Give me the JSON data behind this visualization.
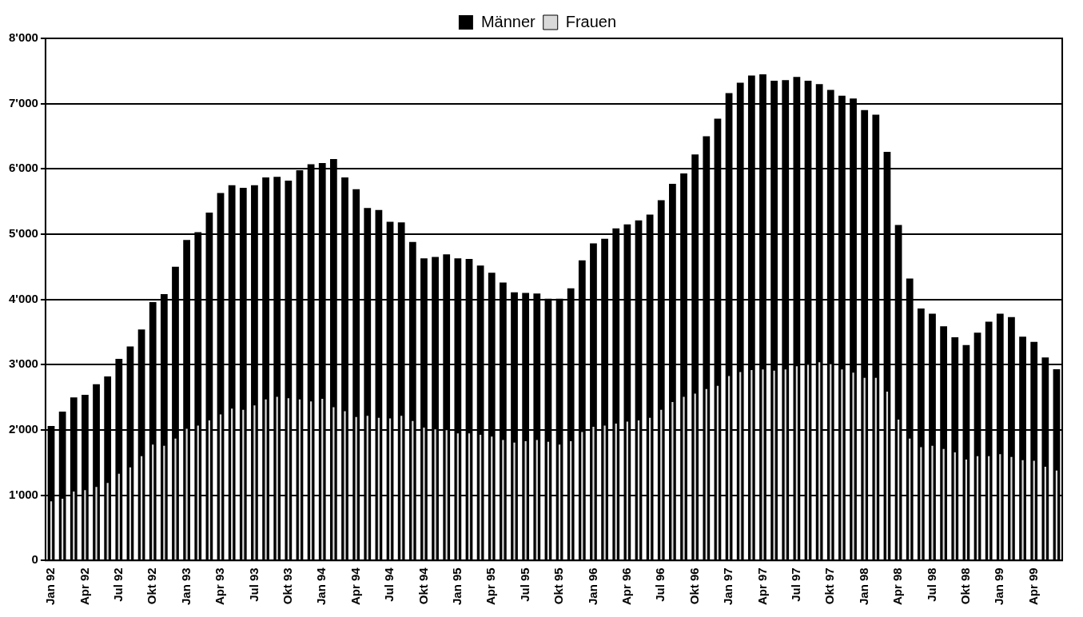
{
  "chart_data": {
    "type": "bar",
    "categories": [
      "Jan 92",
      null,
      null,
      "Apr 92",
      null,
      null,
      "Jul 92",
      null,
      null,
      "Okt 92",
      null,
      null,
      "Jan 93",
      null,
      null,
      "Apr 93",
      null,
      null,
      "Jul 93",
      null,
      null,
      "Okt 93",
      null,
      null,
      "Jan 94",
      null,
      null,
      "Apr 94",
      null,
      null,
      "Jul 94",
      null,
      null,
      "Okt 94",
      null,
      null,
      "Jan 95",
      null,
      null,
      "Apr 95",
      null,
      null,
      "Jul 95",
      null,
      null,
      "Okt 95",
      null,
      null,
      "Jan 96",
      null,
      null,
      "Apr 96",
      null,
      null,
      "Jul 96",
      null,
      null,
      "Okt 96",
      null,
      null,
      "Jan 97",
      null,
      null,
      "Apr 97",
      null,
      null,
      "Jul 97",
      null,
      null,
      "Okt 97",
      null,
      null,
      "Jan 98",
      null,
      null,
      "Apr 98",
      null,
      null,
      "Jul 98",
      null,
      null,
      "Okt 98",
      null,
      null,
      "Jan 99",
      null,
      null,
      "Apr 99",
      null,
      null
    ],
    "series": [
      {
        "name": "Männer",
        "color": "#000000",
        "values": [
          2060,
          2280,
          2500,
          2540,
          2700,
          2820,
          3090,
          3280,
          3540,
          3960,
          4080,
          4500,
          4910,
          5030,
          5330,
          5630,
          5750,
          5710,
          5750,
          5870,
          5880,
          5820,
          5980,
          6070,
          6090,
          6150,
          5870,
          5690,
          5400,
          5370,
          5190,
          5180,
          4880,
          4630,
          4650,
          4690,
          4630,
          4620,
          4520,
          4410,
          4260,
          4110,
          4100,
          4090,
          4010,
          4010,
          4170,
          4600,
          4860,
          4930,
          5090,
          5150,
          5210,
          5300,
          5520,
          5770,
          5930,
          6220,
          6500,
          6770,
          7160,
          7320,
          7430,
          7450,
          7350,
          7360,
          7410,
          7350,
          7300,
          7210,
          7120,
          7080,
          6900,
          6830,
          6260,
          5140,
          4320,
          3860,
          3780,
          3590,
          3420,
          3300,
          3490,
          3660,
          3780,
          3730,
          3430,
          3350,
          3110,
          2930
        ]
      },
      {
        "name": "Frauen",
        "color": "#d9d9d9",
        "values": [
          920,
          960,
          1070,
          1090,
          1140,
          1200,
          1340,
          1440,
          1610,
          1790,
          1770,
          1880,
          2030,
          2080,
          2160,
          2250,
          2340,
          2320,
          2390,
          2480,
          2520,
          2500,
          2480,
          2450,
          2490,
          2360,
          2300,
          2210,
          2230,
          2200,
          2190,
          2230,
          2150,
          2050,
          2020,
          2010,
          1960,
          1960,
          1940,
          1910,
          1860,
          1820,
          1840,
          1860,
          1830,
          1790,
          1840,
          1980,
          2060,
          2080,
          2110,
          2140,
          2160,
          2200,
          2320,
          2440,
          2520,
          2570,
          2640,
          2690,
          2840,
          2900,
          2930,
          2940,
          2920,
          2940,
          2990,
          3010,
          3050,
          3020,
          2940,
          2890,
          2810,
          2810,
          2600,
          2170,
          1880,
          1750,
          1770,
          1720,
          1670,
          1560,
          1610,
          1610,
          1640,
          1600,
          1550,
          1540,
          1450,
          1390
        ]
      }
    ],
    "ylim": [
      0,
      8000
    ],
    "yticks": [
      0,
      {
        "value": 1000,
        "label": "1'000"
      },
      {
        "value": 2000,
        "label": "2'000"
      },
      {
        "value": 3000,
        "label": "3'000"
      },
      {
        "value": 4000,
        "label": "4'000"
      },
      {
        "value": 5000,
        "label": "5'000"
      },
      {
        "value": 6000,
        "label": "6'000"
      },
      {
        "value": 7000,
        "label": "7'000"
      },
      {
        "value": 8000,
        "label": "8'000"
      }
    ],
    "grid": "y",
    "legend": "top"
  }
}
